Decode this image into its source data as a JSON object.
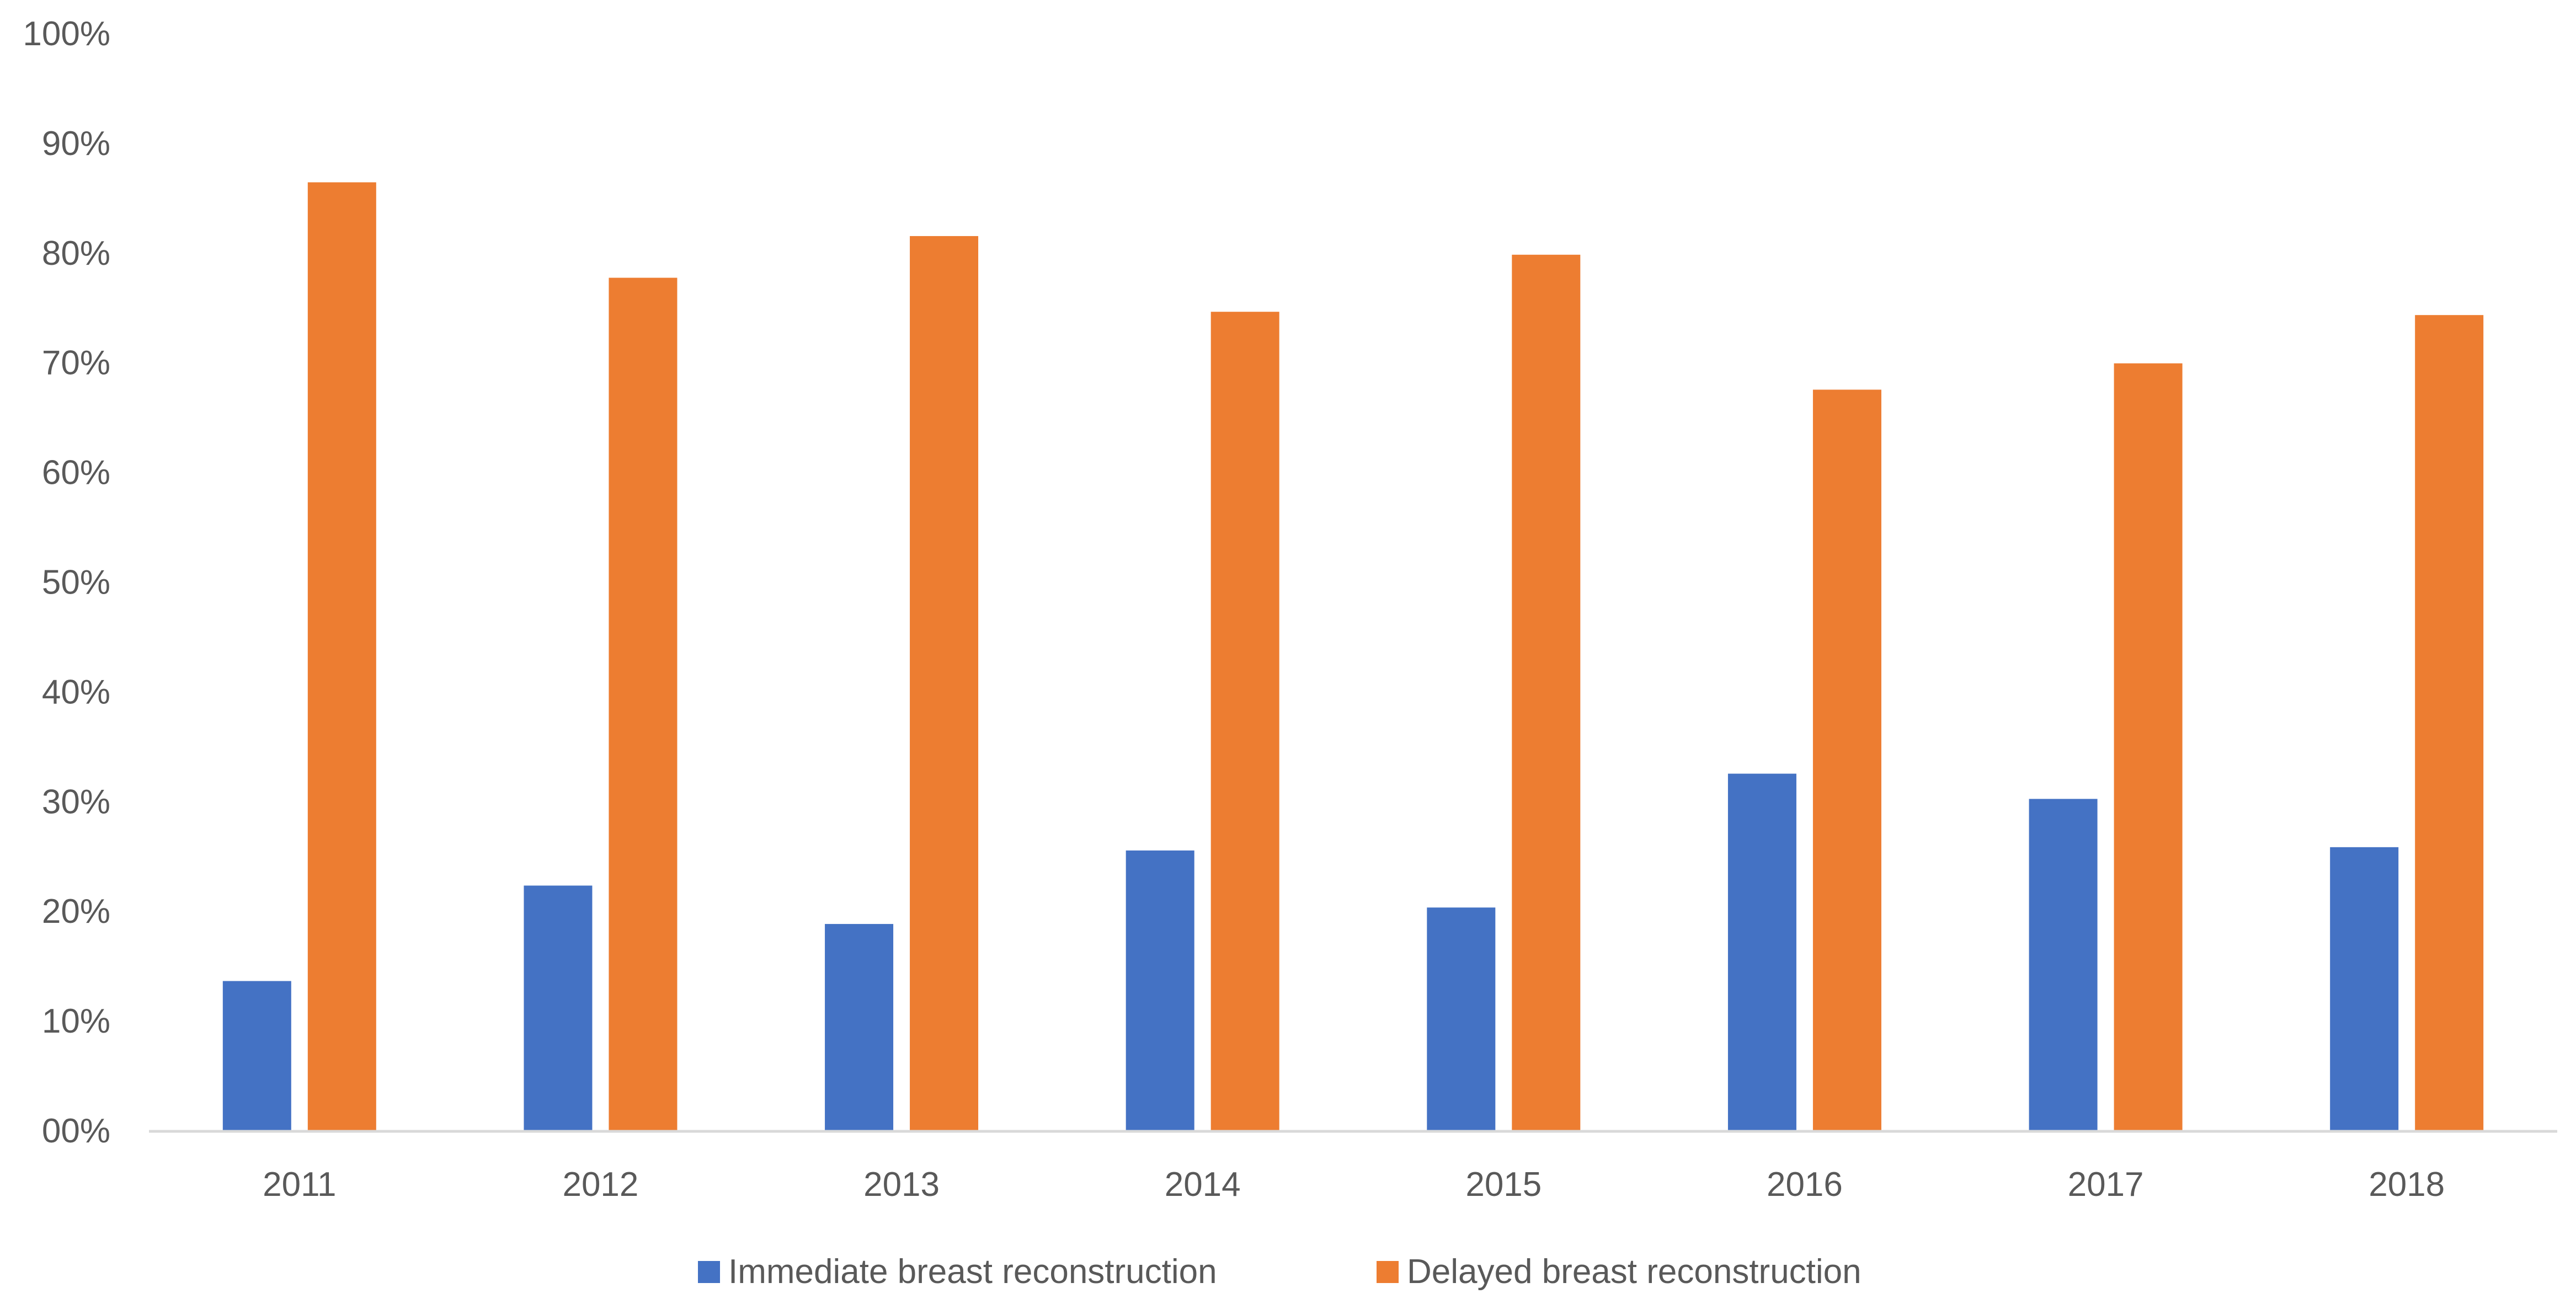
{
  "chart_data": {
    "type": "bar",
    "title": "",
    "xlabel": "",
    "ylabel": "",
    "categories": [
      "2011",
      "2012",
      "2013",
      "2014",
      "2015",
      "2016",
      "2017",
      "2018"
    ],
    "series": [
      {
        "name": "Immediate breast reconstruction",
        "color": "#4472C4",
        "values": [
          13.6,
          22.3,
          18.8,
          25.5,
          20.3,
          32.5,
          30.2,
          25.8
        ]
      },
      {
        "name": "Delayed breast reconstruction",
        "color": "#ED7D31",
        "values": [
          86.4,
          77.7,
          81.5,
          74.6,
          79.8,
          67.5,
          69.9,
          74.3
        ]
      }
    ],
    "ylim": [
      0,
      100
    ],
    "y_ticks": [
      "00%",
      "10%",
      "20%",
      "30%",
      "40%",
      "50%",
      "60%",
      "70%",
      "80%",
      "90%",
      "100%"
    ],
    "grid": false,
    "legend_position": "bottom"
  }
}
